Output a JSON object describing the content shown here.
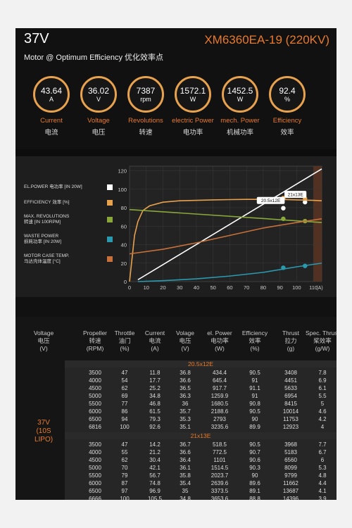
{
  "header": {
    "voltage": "37V",
    "model": "XM6360EA-19 (220KV)",
    "subtitle": "Motor @ Optimum Efficiency  优化效率点"
  },
  "gauges": [
    {
      "value": "43.64",
      "unit": "A",
      "label_en": "Current",
      "label_cn": "电流"
    },
    {
      "value": "36.02",
      "unit": "V",
      "label_en": "Voltage",
      "label_cn": "电压"
    },
    {
      "value": "7387",
      "unit": "rpm",
      "label_en": "Revolutions",
      "label_cn": "转速"
    },
    {
      "value": "1572.1",
      "unit": "W",
      "label_en": "electric Power",
      "label_cn": "电功率"
    },
    {
      "value": "1452.5",
      "unit": "W",
      "label_en": "mech. Power",
      "label_cn": "机械功率"
    },
    {
      "value": "92.4",
      "unit": "%",
      "label_en": "Efficiency",
      "label_cn": "效率"
    }
  ],
  "legend": [
    {
      "l1": "EL.POWER 电功率 [IN 20W]",
      "l2": "",
      "color": "#ffffff"
    },
    {
      "l1": "EFFICIENCY 效率 [%]",
      "l2": "",
      "color": "#e8a24e"
    },
    {
      "l1": "MAX. REVOLUTIONS",
      "l2": "转速 [IN 100RPM]",
      "color": "#8aa83a"
    },
    {
      "l1": "WASTE POWER",
      "l2": "损耗功率 [IN 20W]",
      "color": "#2a9ab0"
    },
    {
      "l1": "MOTOR CASE TEMP.",
      "l2": "马达壳体温度 [°C]",
      "color": "#c8703a"
    }
  ],
  "chart_data": {
    "type": "line",
    "xlim": [
      0,
      110
    ],
    "ylim": [
      0,
      120
    ],
    "x_ticks": [
      "0",
      "10",
      "20",
      "30",
      "40",
      "50",
      "60",
      "70",
      "80",
      "90",
      "100",
      "110"
    ],
    "y_ticks": [
      "0",
      "20",
      "40",
      "60",
      "80",
      "100",
      "120"
    ],
    "x_unit": "(A)",
    "annotations": [
      {
        "label": "20.5x12E",
        "x": 92
      },
      {
        "label": "21x13E",
        "x": 105
      }
    ],
    "series": [
      {
        "name": "EL.POWER",
        "color": "#ffffff",
        "x": [
          5,
          115
        ],
        "y": [
          2,
          122
        ],
        "markers": [
          [
            92,
            79.5
          ],
          [
            105,
            86
          ]
        ]
      },
      {
        "name": "EFFICIENCY",
        "color": "#e8a24e",
        "x": [
          0,
          3,
          5,
          8,
          12,
          20,
          30,
          40,
          50,
          60,
          70,
          80,
          90,
          100,
          110,
          115
        ],
        "y": [
          0,
          50,
          65,
          77,
          82,
          86,
          87.5,
          88,
          88.5,
          88.8,
          89,
          89,
          89,
          88.5,
          88,
          87.5
        ],
        "markers": [
          [
            92,
            90.5
          ],
          [
            105,
            89.9
          ]
        ]
      },
      {
        "name": "MAX. REVOLUTIONS",
        "color": "#8aa83a",
        "x": [
          0,
          115
        ],
        "y": [
          78,
          64
        ],
        "markers": [
          [
            92,
            68
          ],
          [
            105,
            65.5
          ]
        ]
      },
      {
        "name": "WASTE POWER",
        "color": "#2a9ab0",
        "x": [
          5,
          20,
          40,
          60,
          80,
          100,
          115
        ],
        "y": [
          0,
          1,
          3,
          6,
          10,
          16,
          20
        ],
        "markers": [
          [
            92,
            15
          ],
          [
            105,
            17
          ]
        ]
      },
      {
        "name": "MOTOR CASE TEMP.",
        "color": "#c8703a",
        "x": [
          0,
          20,
          40,
          60,
          80,
          100,
          115
        ],
        "y": [
          30,
          35,
          42,
          50,
          58,
          64,
          68
        ],
        "markers": []
      }
    ]
  },
  "table": {
    "headers": [
      {
        "l1": "Voltage",
        "l2": "电压",
        "l3": "(V)"
      },
      {
        "l1": "Propeller",
        "l2": "转速",
        "l3": "(RPM)"
      },
      {
        "l1": "Throttle",
        "l2": "油门",
        "l3": "(%)"
      },
      {
        "l1": "Current",
        "l2": "电流",
        "l3": "(A)"
      },
      {
        "l1": "Volage",
        "l2": "电压",
        "l3": "(V)"
      },
      {
        "l1": "el. Power",
        "l2": "电功率",
        "l3": "(W)"
      },
      {
        "l1": "Efficiency",
        "l2": "效率",
        "l3": "(%)"
      },
      {
        "l1": "Thrust",
        "l2": "拉力",
        "l3": "(g)"
      },
      {
        "l1": "Spec. Thrust",
        "l2": "桨效率",
        "l3": "(g/W)"
      }
    ],
    "voltage_l1": "37V",
    "voltage_l2": "(10S LIPO)",
    "sections": [
      {
        "name": "20.5x12E",
        "rows": [
          [
            "3500",
            "47",
            "11.8",
            "36.8",
            "434.4",
            "90.5",
            "3408",
            "7.8"
          ],
          [
            "4000",
            "54",
            "17.7",
            "36.6",
            "645.4",
            "91",
            "4451",
            "6.9"
          ],
          [
            "4500",
            "62",
            "25.2",
            "36.5",
            "917.7",
            "91.1",
            "5633",
            "6.1"
          ],
          [
            "5000",
            "69",
            "34.8",
            "36.3",
            "1259.9",
            "91",
            "6954",
            "5.5"
          ],
          [
            "5500",
            "77",
            "46.8",
            "36",
            "1680.5",
            "90.8",
            "8415",
            "5"
          ],
          [
            "6000",
            "86",
            "61.5",
            "35.7",
            "2188.6",
            "90.5",
            "10014",
            "4.6"
          ],
          [
            "6500",
            "94",
            "79.3",
            "35.3",
            "2793",
            "90",
            "11753",
            "4.2"
          ],
          [
            "6816",
            "100",
            "92.6",
            "35.1",
            "3235.6",
            "89.9",
            "12923",
            "4"
          ]
        ]
      },
      {
        "name": "21x13E",
        "rows": [
          [
            "3500",
            "47",
            "14.2",
            "36.7",
            "518.5",
            "90.5",
            "3968",
            "7.7"
          ],
          [
            "4000",
            "55",
            "21.2",
            "36.6",
            "772.5",
            "90.7",
            "5183",
            "6.7"
          ],
          [
            "4500",
            "62",
            "30.4",
            "36.4",
            "1101",
            "90.6",
            "6560",
            "6"
          ],
          [
            "5000",
            "70",
            "42.1",
            "36.1",
            "1514.5",
            "90.3",
            "8099",
            "5.3"
          ],
          [
            "5500",
            "79",
            "56.7",
            "35.8",
            "2023.7",
            "90",
            "9799",
            "4.8"
          ],
          [
            "6000",
            "87",
            "74.8",
            "35.4",
            "2639.6",
            "89.6",
            "11662",
            "4.4"
          ],
          [
            "6500",
            "97",
            "96.9",
            "35",
            "3373.5",
            "89.1",
            "13687",
            "4.1"
          ],
          [
            "6666",
            "100",
            "105.5",
            "34.8",
            "3653.6",
            "88.8",
            "14396",
            "3.9"
          ]
        ]
      }
    ]
  }
}
